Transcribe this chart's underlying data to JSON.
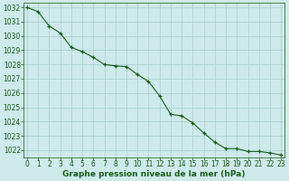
{
  "x": [
    0,
    1,
    2,
    3,
    4,
    5,
    6,
    7,
    8,
    9,
    10,
    11,
    12,
    13,
    14,
    15,
    16,
    17,
    18,
    19,
    20,
    21,
    22,
    23
  ],
  "y": [
    1032.0,
    1031.7,
    1030.7,
    1030.2,
    1029.2,
    1028.9,
    1028.5,
    1028.0,
    1027.9,
    1027.85,
    1027.3,
    1026.8,
    1025.8,
    1024.5,
    1024.4,
    1023.9,
    1023.2,
    1022.55,
    1022.1,
    1022.1,
    1021.9,
    1021.9,
    1021.8,
    1021.65
  ],
  "line_color": "#1a5c1a",
  "marker": "+",
  "marker_size": 3.5,
  "marker_lw": 0.9,
  "line_width": 0.8,
  "bg_color": "#ceeaea",
  "grid_color": "#aacece",
  "ylim": [
    1021.5,
    1032.3
  ],
  "xlim": [
    -0.3,
    23.3
  ],
  "yticks": [
    1022,
    1023,
    1024,
    1025,
    1026,
    1027,
    1028,
    1029,
    1030,
    1031,
    1032
  ],
  "xticks": [
    0,
    1,
    2,
    3,
    4,
    5,
    6,
    7,
    8,
    9,
    10,
    11,
    12,
    13,
    14,
    15,
    16,
    17,
    18,
    19,
    20,
    21,
    22,
    23
  ],
  "xlabel": "Graphe pression niveau de la mer (hPa)",
  "xlabel_color": "#1a5c1a",
  "tick_color": "#1a5c1a",
  "tick_fontsize": 5.5,
  "xlabel_fontsize": 6.5
}
